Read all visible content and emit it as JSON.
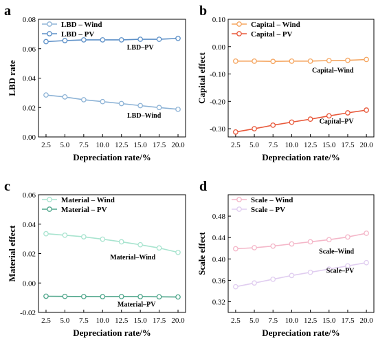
{
  "chart_data": [
    {
      "type": "line",
      "panel": "a",
      "xlabel": "Depreciation rate/%",
      "ylabel": "LBD rate",
      "xlim": [
        1.5,
        21.0
      ],
      "ylim": [
        0.0,
        0.08
      ],
      "x": [
        2.5,
        5.0,
        7.5,
        10.0,
        12.5,
        15.0,
        17.5,
        20.0
      ],
      "xticks": [
        "2.5",
        "5.0",
        "7.5",
        "10.0",
        "12.5",
        "15.0",
        "17.5",
        "20.0"
      ],
      "yticks": [
        "0.00",
        "0.02",
        "0.04",
        "0.06",
        "0.08"
      ],
      "ytick_values": [
        0.0,
        0.02,
        0.04,
        0.06,
        0.08
      ],
      "legend_position": "top-left",
      "series": [
        {
          "name": "LBD – Wind",
          "color": "#8db3d6",
          "values": [
            0.0285,
            0.0272,
            0.0253,
            0.024,
            0.0227,
            0.0213,
            0.02,
            0.0188
          ]
        },
        {
          "name": "LBD – PV",
          "color": "#5b8fc7",
          "values": [
            0.0648,
            0.0655,
            0.066,
            0.066,
            0.066,
            0.0664,
            0.0664,
            0.067
          ]
        }
      ],
      "annotations": [
        {
          "text": "LBD–PV",
          "x": 15.0,
          "y": 0.0595
        },
        {
          "text": "LBD–Wind",
          "x": 15.5,
          "y": 0.013
        }
      ]
    },
    {
      "type": "line",
      "panel": "b",
      "xlabel": "Depreciation rate/%",
      "ylabel": "Capital effect",
      "xlim": [
        1.5,
        21.0
      ],
      "ylim": [
        -0.33,
        0.1
      ],
      "x": [
        2.5,
        5.0,
        7.5,
        10.0,
        12.5,
        15.0,
        17.5,
        20.0
      ],
      "xticks": [
        "2.5",
        "5.0",
        "7.5",
        "10.0",
        "12.5",
        "15.0",
        "17.5",
        "20.0"
      ],
      "yticks": [
        "-0.30",
        "-0.20",
        "-0.10",
        "0.00",
        "0.10"
      ],
      "ytick_values": [
        -0.3,
        -0.2,
        -0.1,
        0.0,
        0.1
      ],
      "legend_position": "top-left",
      "series": [
        {
          "name": "Capital – Wind",
          "color": "#f5a55f",
          "values": [
            -0.053,
            -0.053,
            -0.054,
            -0.053,
            -0.053,
            -0.051,
            -0.05,
            -0.047
          ]
        },
        {
          "name": "Capital – PV",
          "color": "#e8583a",
          "values": [
            -0.312,
            -0.3,
            -0.287,
            -0.276,
            -0.265,
            -0.253,
            -0.242,
            -0.232
          ]
        }
      ],
      "annotations": [
        {
          "text": "Capital–Wind",
          "x": 15.5,
          "y": -0.095
        },
        {
          "text": "Capital–PV",
          "x": 16.0,
          "y": -0.281
        }
      ]
    },
    {
      "type": "line",
      "panel": "c",
      "xlabel": "Depreciation rate/%",
      "ylabel": "Material effect",
      "xlim": [
        1.5,
        21.0
      ],
      "ylim": [
        -0.02,
        0.06
      ],
      "x": [
        2.5,
        5.0,
        7.5,
        10.0,
        12.5,
        15.0,
        17.5,
        20.0
      ],
      "xticks": [
        "2.5",
        "5.0",
        "7.5",
        "10.0",
        "12.5",
        "15.0",
        "17.5",
        "20.0"
      ],
      "yticks": [
        "-0.02",
        "0.00",
        "0.02",
        "0.04",
        "0.06"
      ],
      "ytick_values": [
        -0.02,
        0.0,
        0.02,
        0.04,
        0.06
      ],
      "legend_position": "top-left",
      "series": [
        {
          "name": "Material – Wind",
          "color": "#a8e4cf",
          "values": [
            0.0335,
            0.0325,
            0.0314,
            0.0298,
            0.028,
            0.026,
            0.0238,
            0.0208
          ]
        },
        {
          "name": "Material – PV",
          "color": "#4fa68b",
          "values": [
            -0.009,
            -0.0091,
            -0.0092,
            -0.0093,
            -0.0092,
            -0.0093,
            -0.0094,
            -0.0095
          ]
        }
      ],
      "annotations": [
        {
          "text": "Material–Wind",
          "x": 14.0,
          "y": 0.016
        },
        {
          "text": "Material–PV",
          "x": 14.5,
          "y": -0.016
        }
      ]
    },
    {
      "type": "line",
      "panel": "d",
      "xlabel": "Depreciation rate/%",
      "ylabel": "Scale effect",
      "xlim": [
        1.5,
        21.0
      ],
      "ylim": [
        0.3,
        0.52
      ],
      "x": [
        2.5,
        5.0,
        7.5,
        10.0,
        12.5,
        15.0,
        17.5,
        20.0
      ],
      "xticks": [
        "2.5",
        "5.0",
        "7.5",
        "10.0",
        "12.5",
        "15.0",
        "17.5",
        "20.0"
      ],
      "yticks": [
        "0.32",
        "0.36",
        "0.40",
        "0.44",
        "0.48"
      ],
      "ytick_values": [
        0.32,
        0.36,
        0.4,
        0.44,
        0.48
      ],
      "legend_position": "top-left",
      "series": [
        {
          "name": "Scale – Wind",
          "color": "#f4b6c8",
          "values": [
            0.419,
            0.421,
            0.424,
            0.428,
            0.432,
            0.436,
            0.441,
            0.448
          ]
        },
        {
          "name": "Scale – PV",
          "color": "#e0cdf0",
          "values": [
            0.348,
            0.355,
            0.362,
            0.369,
            0.375,
            0.381,
            0.387,
            0.393
          ]
        }
      ],
      "annotations": [
        {
          "text": "Scale–Wind",
          "x": 16.0,
          "y": 0.41
        },
        {
          "text": "Scale–PV",
          "x": 16.5,
          "y": 0.374
        }
      ]
    }
  ]
}
